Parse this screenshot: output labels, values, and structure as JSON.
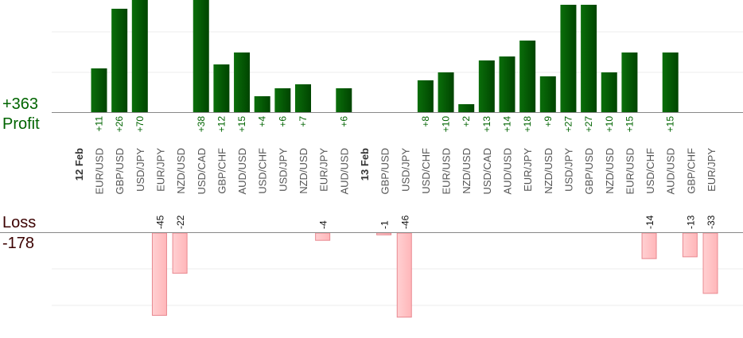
{
  "summary": {
    "net_profit": "+363",
    "profit_label": "Profit",
    "loss_label": "Loss",
    "net_loss": "-178"
  },
  "colors": {
    "profit_bar": "#0a6e0a",
    "profit_bar_dark": "#004400",
    "profit_text": "#006400",
    "loss_bar": "#ffb6b9",
    "loss_bar_edge": "#e88890",
    "loss_text": "#111111"
  },
  "chart_data": {
    "type": "bar",
    "title": "",
    "grid": true,
    "profit_axis_max": 28,
    "loss_axis_max": 46,
    "groups": [
      {
        "date": "12 Feb",
        "start_index": 0
      },
      {
        "date": "13 Feb",
        "start_index": 13
      }
    ],
    "categories": [
      "EUR/USD",
      "GBP/USD",
      "USD/JPY",
      "EUR/JPY",
      "NZD/USD",
      "USD/CAD",
      "GBP/CHF",
      "AUD/USD",
      "USD/CHF",
      "USD/JPY",
      "NZD/USD",
      "EUR/JPY",
      "AUD/USD",
      "GBP/USD",
      "USD/JPY",
      "USD/CHF",
      "EUR/USD",
      "NZD/USD",
      "USD/CAD",
      "AUD/USD",
      "EUR/JPY",
      "NZD/USD",
      "USD/JPY",
      "GBP/USD",
      "NZD/USD",
      "EUR/USD",
      "USD/CHF",
      "AUD/USD",
      "GBP/CHF",
      "EUR/JPY"
    ],
    "values": [
      11,
      26,
      70,
      -45,
      -22,
      38,
      12,
      15,
      4,
      6,
      7,
      -4,
      6,
      -1,
      -46,
      8,
      10,
      2,
      13,
      14,
      18,
      9,
      27,
      27,
      10,
      15,
      -14,
      15,
      -13,
      -33
    ],
    "labels": [
      "+11",
      "+26",
      "+70",
      "-45",
      "-22",
      "+38",
      "+12",
      "+15",
      "+4",
      "+6",
      "+7",
      "-4",
      "+6",
      "-1",
      "-46",
      "+8",
      "+10",
      "+2",
      "+13",
      "+14",
      "+18",
      "+9",
      "+27",
      "+27",
      "+10",
      "+15",
      "-14",
      "+15",
      "-13",
      "-33"
    ]
  }
}
